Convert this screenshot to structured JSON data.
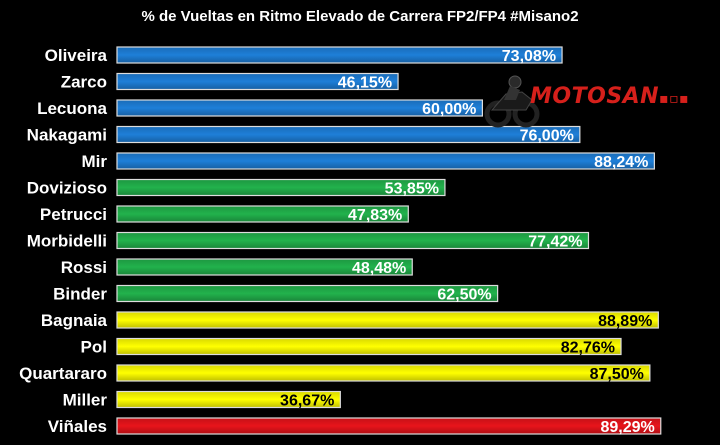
{
  "chart_data": {
    "type": "bar",
    "orientation": "horizontal",
    "title": "% de Vueltas en Ritmo Elevado de Carrera FP2/FP4 #Misano2",
    "xlabel": "",
    "ylabel": "",
    "xlim": [
      0,
      100
    ],
    "grid": false,
    "legend": "none",
    "bars": [
      {
        "category": "Oliveira",
        "value": 73.08,
        "label": "73,08%",
        "color": "#1e7fd8",
        "label_color": "#ffffff"
      },
      {
        "category": "Zarco",
        "value": 46.15,
        "label": "46,15%",
        "color": "#1e7fd8",
        "label_color": "#ffffff"
      },
      {
        "category": "Lecuona",
        "value": 60.0,
        "label": "60,00%",
        "color": "#1e7fd8",
        "label_color": "#ffffff"
      },
      {
        "category": "Nakagami",
        "value": 76.0,
        "label": "76,00%",
        "color": "#1e7fd8",
        "label_color": "#ffffff"
      },
      {
        "category": "Mir",
        "value": 88.24,
        "label": "88,24%",
        "color": "#1e7fd8",
        "label_color": "#ffffff"
      },
      {
        "category": "Dovizioso",
        "value": 53.85,
        "label": "53,85%",
        "color": "#22b24c",
        "label_color": "#ffffff"
      },
      {
        "category": "Petrucci",
        "value": 47.83,
        "label": "47,83%",
        "color": "#22b24c",
        "label_color": "#ffffff"
      },
      {
        "category": "Morbidelli",
        "value": 77.42,
        "label": "77,42%",
        "color": "#22b24c",
        "label_color": "#ffffff"
      },
      {
        "category": "Rossi",
        "value": 48.48,
        "label": "48,48%",
        "color": "#22b24c",
        "label_color": "#ffffff"
      },
      {
        "category": "Binder",
        "value": 62.5,
        "label": "62,50%",
        "color": "#22b24c",
        "label_color": "#ffffff"
      },
      {
        "category": "Bagnaia",
        "value": 88.89,
        "label": "88,89%",
        "color": "#ffff00",
        "label_color": "#000000"
      },
      {
        "category": "Pol",
        "value": 82.76,
        "label": "82,76%",
        "color": "#ffff00",
        "label_color": "#000000"
      },
      {
        "category": "Quartararo",
        "value": 87.5,
        "label": "87,50%",
        "color": "#ffff00",
        "label_color": "#000000"
      },
      {
        "category": "Miller",
        "value": 36.67,
        "label": "36,67%",
        "color": "#ffff00",
        "label_color": "#000000"
      },
      {
        "category": "Viñales",
        "value": 89.29,
        "label": "89,29%",
        "color": "#e8141b",
        "label_color": "#ffffff"
      }
    ]
  },
  "logo": {
    "part1": "MOTO",
    "part2": "SAN",
    "icon": "motorcycle-rider-icon"
  }
}
